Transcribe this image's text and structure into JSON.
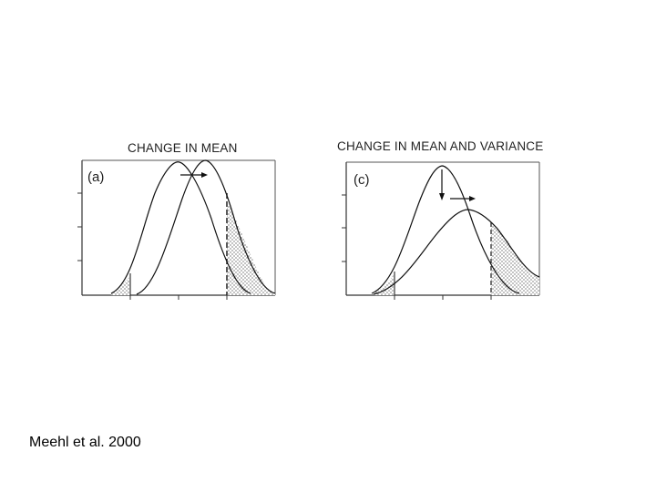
{
  "panels": [
    {
      "title": "CHANGE IN MEAN",
      "letter": "(a)"
    },
    {
      "title": "CHANGE IN MEAN AND VARIANCE",
      "letter": "(c)"
    }
  ],
  "citation": "Meehl et al. 2000"
}
